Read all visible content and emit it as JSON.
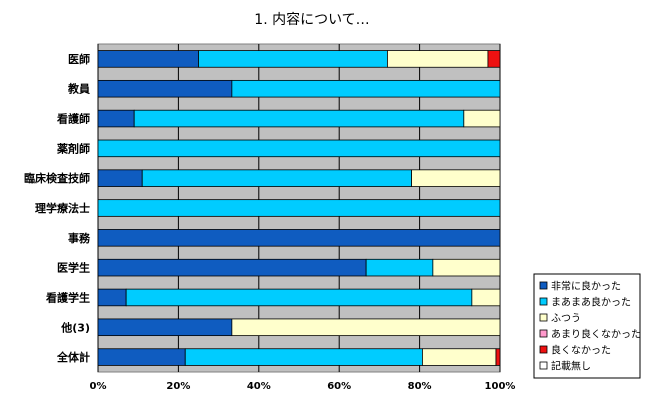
{
  "chart_data": {
    "type": "bar",
    "orientation": "horizontal",
    "stacked": true,
    "percent": true,
    "title": "1. 内容について…",
    "categories": [
      "医師",
      "教員",
      "看護師",
      "薬剤師",
      "臨床検査技師",
      "理学療法士",
      "事務",
      "医学生",
      "看護学生",
      "他(3)",
      "全体計"
    ],
    "series": [
      {
        "name": "非常に良かった",
        "color": "#0f5cc0",
        "values": [
          25,
          33.3,
          9,
          0,
          11,
          0,
          100,
          66.7,
          7,
          33.3,
          21.7
        ]
      },
      {
        "name": "まあまあ良かった",
        "color": "#00ccff",
        "values": [
          47,
          66.7,
          82,
          100,
          67,
          100,
          0,
          16.6,
          86,
          0,
          59
        ]
      },
      {
        "name": "ふつう",
        "color": "#ffffcc",
        "values": [
          25,
          0,
          9,
          0,
          22,
          0,
          0,
          16.7,
          7,
          66.7,
          18.3
        ]
      },
      {
        "name": "あまり良くなかった",
        "color": "#ff99cc",
        "values": [
          0,
          0,
          0,
          0,
          0,
          0,
          0,
          0,
          0,
          0,
          0
        ]
      },
      {
        "name": "良くなかった",
        "color": "#ee1111",
        "values": [
          3,
          0,
          0,
          0,
          0,
          0,
          0,
          0,
          0,
          0,
          1
        ]
      },
      {
        "name": "記載無し",
        "color": "#ffffff",
        "values": [
          0,
          0,
          0,
          0,
          0,
          0,
          0,
          0,
          0,
          0,
          0
        ]
      }
    ],
    "xlim": [
      0,
      100
    ],
    "xticks": [
      "0%",
      "20%",
      "40%",
      "60%",
      "80%",
      "100%"
    ],
    "grid": true,
    "plot_background": "#c0c0c0",
    "legend_position": "right-bottom"
  }
}
